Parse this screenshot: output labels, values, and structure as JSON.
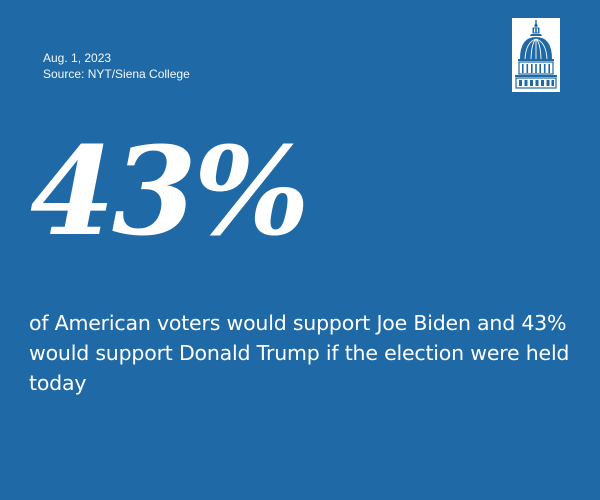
{
  "colors": {
    "background": "#1f6aa6",
    "text": "#ffffff"
  },
  "meta": {
    "date": "Aug. 1, 2023",
    "source": "Source: NYT/Siena College"
  },
  "logo": {
    "icon": "capitol-dome-icon"
  },
  "headline": {
    "value": "43%"
  },
  "statement": {
    "text": "of American voters would support Joe Biden and 43% would support Donald Trump if the election were held today"
  }
}
